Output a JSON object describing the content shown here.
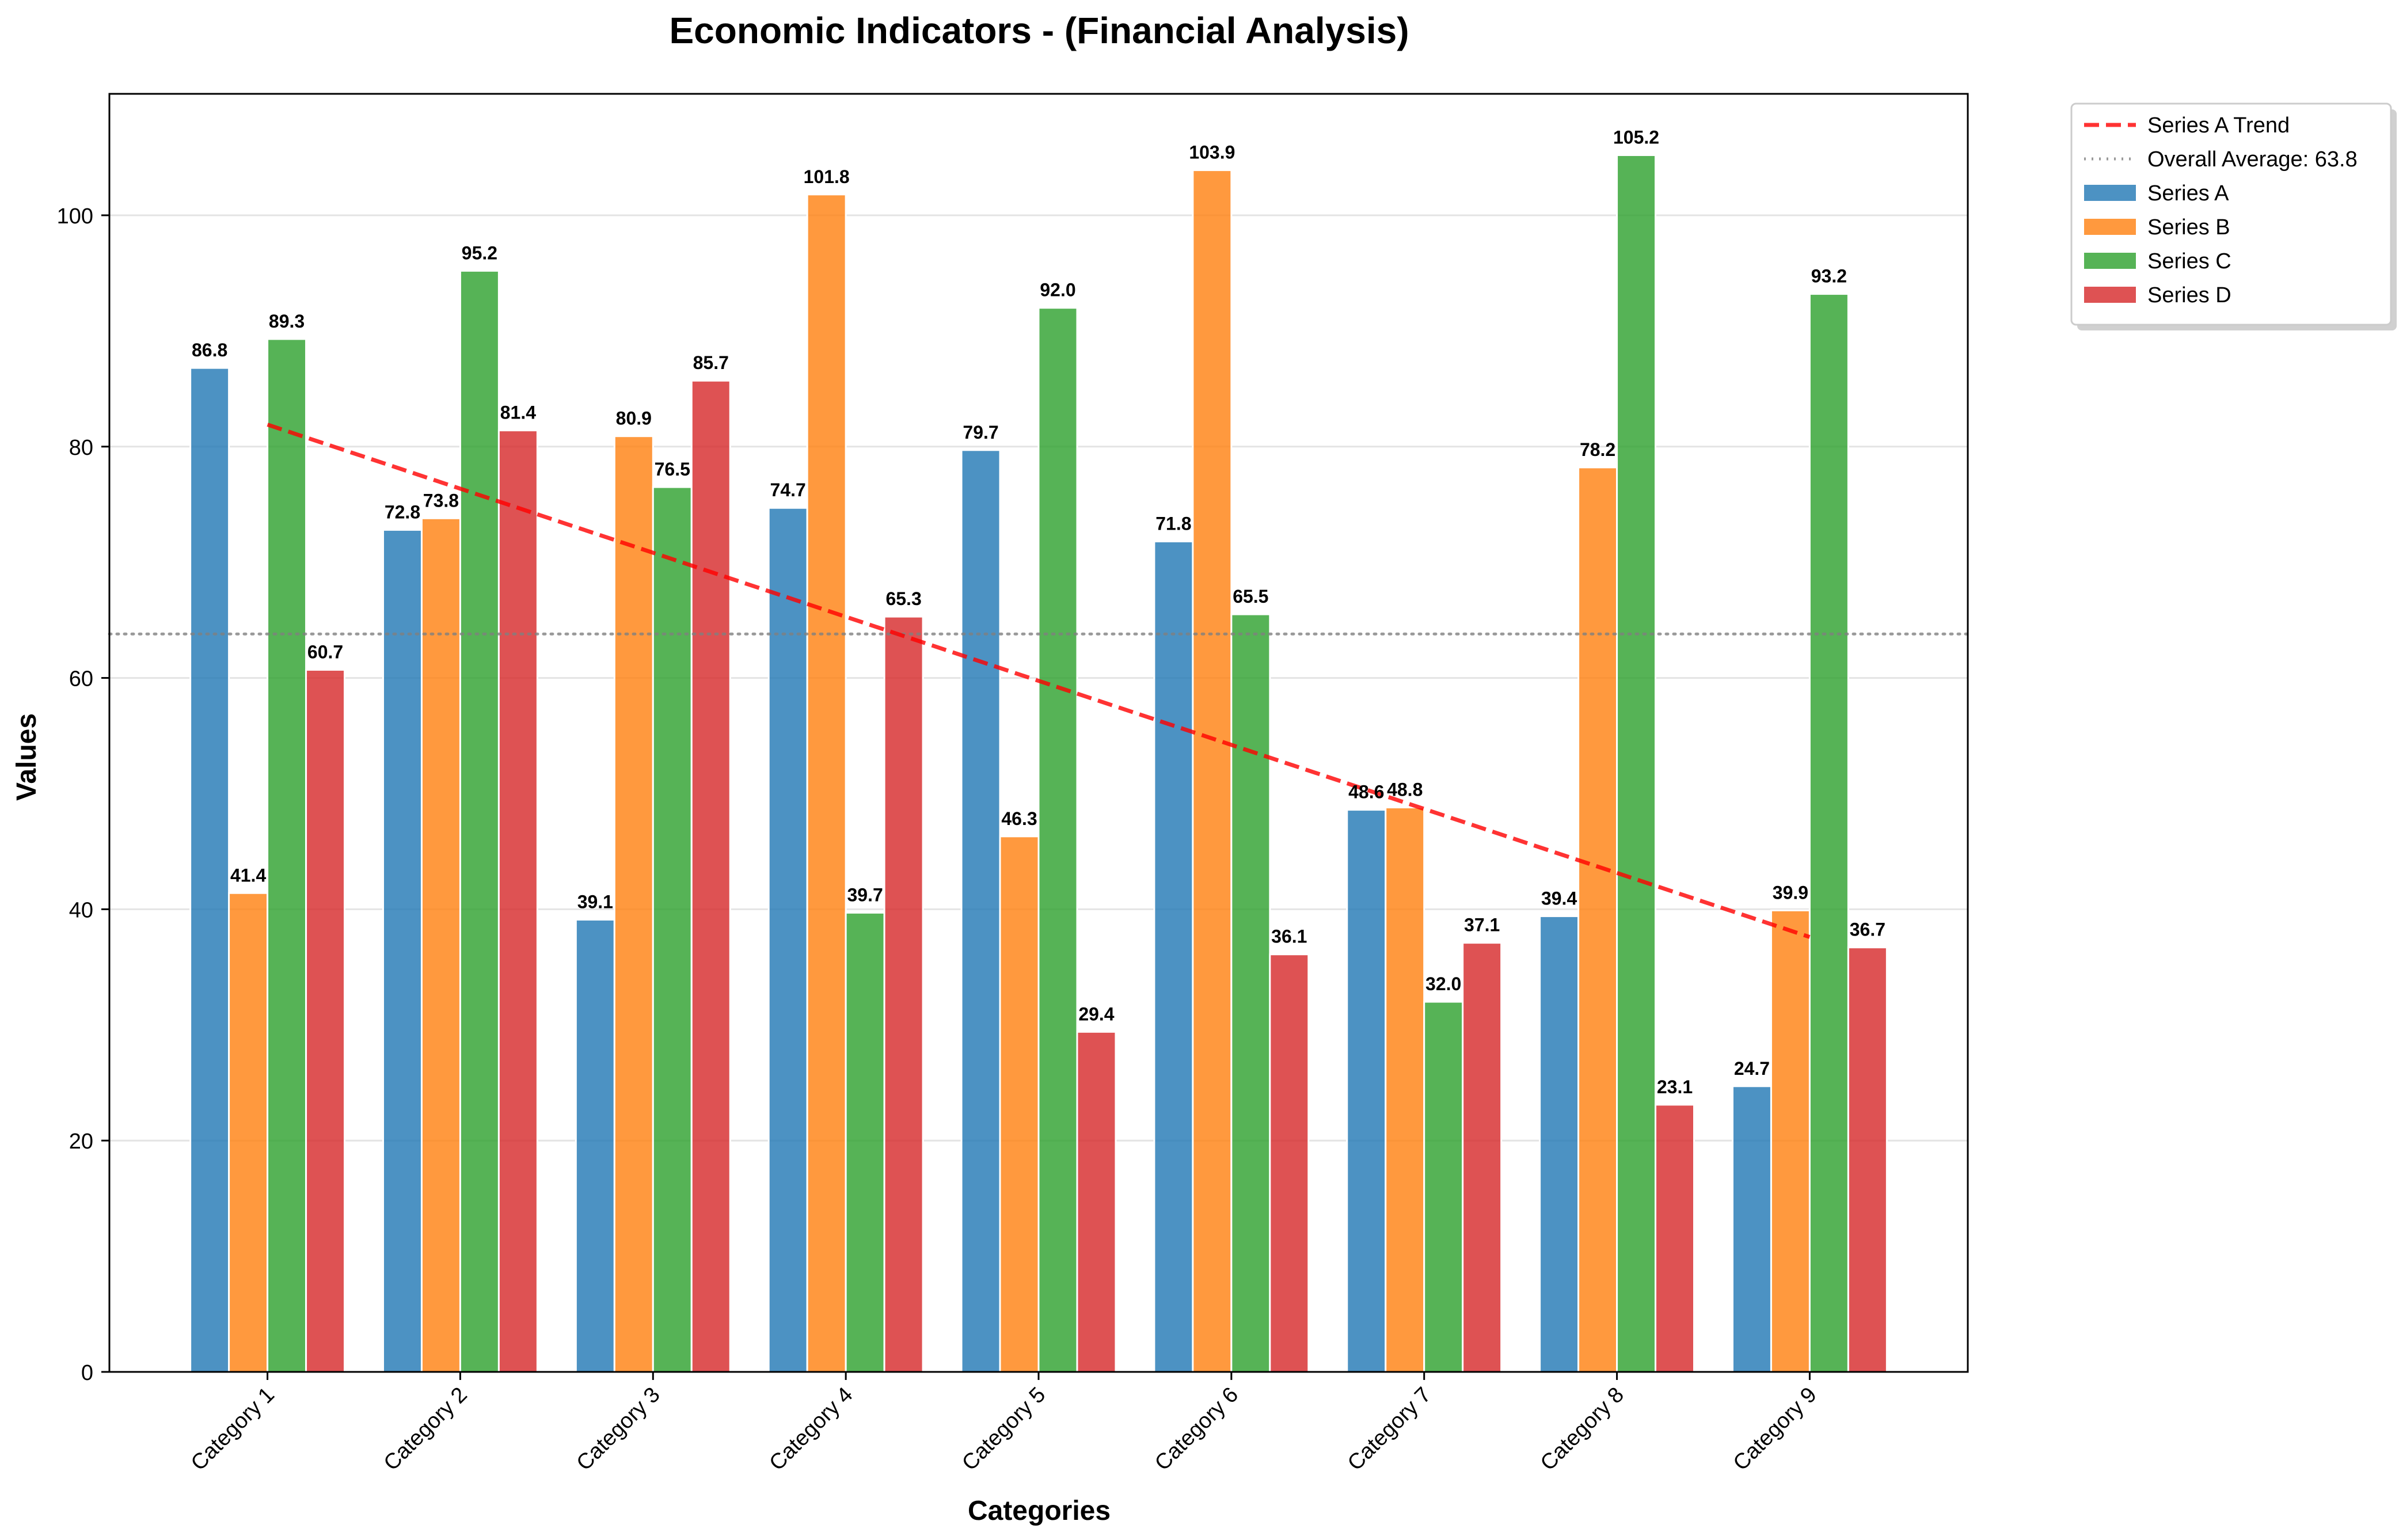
{
  "chart_data": {
    "type": "bar",
    "title": "Economic Indicators - (Financial Analysis)",
    "xlabel": "Categories",
    "ylabel": "Values",
    "categories": [
      "Category 1",
      "Category 2",
      "Category 3",
      "Category 4",
      "Category 5",
      "Category 6",
      "Category 7",
      "Category 8",
      "Category 9"
    ],
    "ylim": [
      0,
      110.5
    ],
    "yticks": [
      0,
      20,
      40,
      60,
      80,
      100
    ],
    "grid": "horizontal",
    "legend_position": "outside-top-right",
    "series": [
      {
        "name": "Series A",
        "color": "#1f77b4",
        "values": [
          86.8,
          72.8,
          39.1,
          74.7,
          79.7,
          71.8,
          48.6,
          39.4,
          24.7
        ]
      },
      {
        "name": "Series B",
        "color": "#ff7f0e",
        "values": [
          41.4,
          73.8,
          80.9,
          101.8,
          46.3,
          103.9,
          48.8,
          78.2,
          39.9
        ]
      },
      {
        "name": "Series C",
        "color": "#2ca02c",
        "values": [
          89.3,
          95.2,
          76.5,
          39.7,
          92.0,
          65.5,
          32.0,
          105.2,
          93.2
        ]
      },
      {
        "name": "Series D",
        "color": "#d62728",
        "values": [
          60.7,
          81.4,
          85.7,
          65.3,
          29.4,
          36.1,
          37.1,
          23.1,
          36.7
        ]
      }
    ],
    "trend_line": {
      "name": "Series A Trend",
      "color": "#ff0000",
      "style": "dashed",
      "start": 81.9,
      "end": 37.6
    },
    "average_line": {
      "name": "Overall Average: 63.8",
      "value": 63.8,
      "color": "#808080",
      "style": "dotted"
    }
  }
}
